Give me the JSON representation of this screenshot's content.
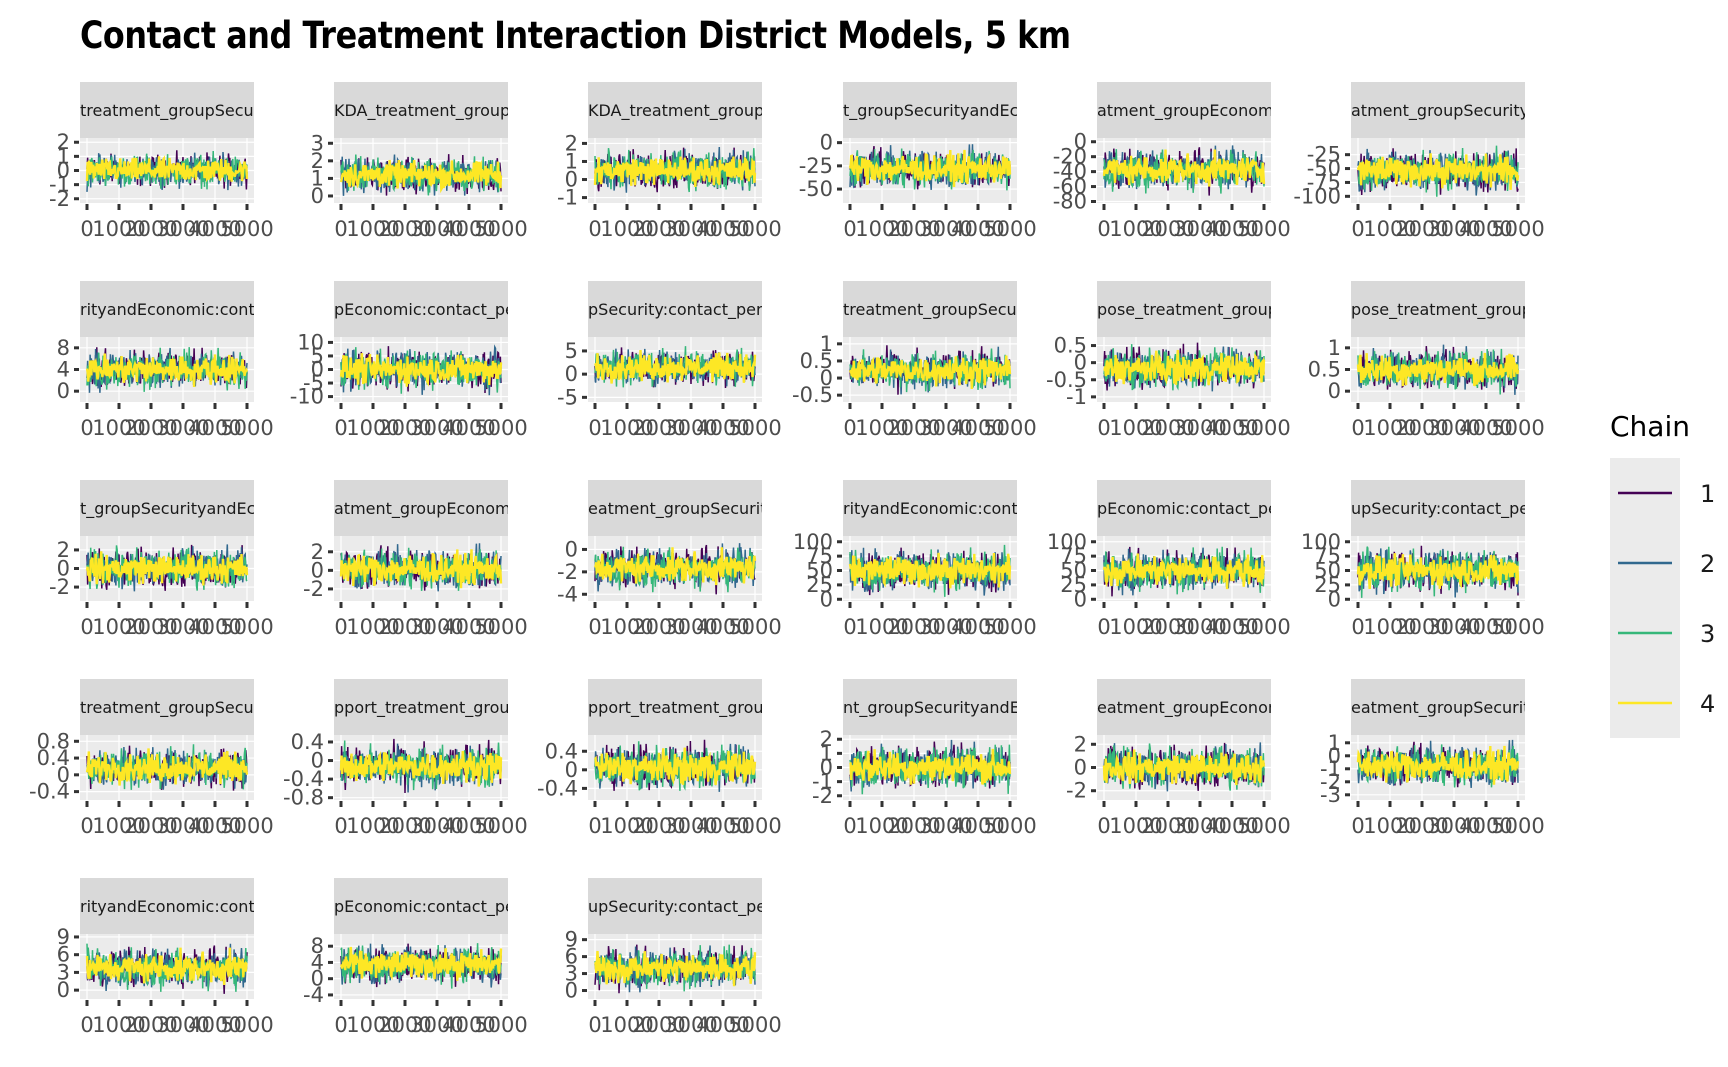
{
  "chart_data": {
    "type": "line",
    "title": "Contact and Treatment Interaction District Models, 5 km",
    "x_tick_labels": [
      "0",
      "1000",
      "2000",
      "3000",
      "4000",
      "5000"
    ],
    "xlim": [
      0,
      5000
    ],
    "grid": true,
    "legend": {
      "title": "Chain",
      "position": "right",
      "entries": [
        {
          "label": "1",
          "color": "#440154"
        },
        {
          "label": "2",
          "color": "#31688e"
        },
        {
          "label": "3",
          "color": "#35b779"
        },
        {
          "label": "4",
          "color": "#fde725"
        }
      ]
    },
    "panels": [
      {
        "strip": "treatment_groupSecurity",
        "yticks": [
          2,
          1,
          0,
          -1,
          -2
        ],
        "ylim": [
          -2.3,
          2.3
        ],
        "band": [
          -1.6,
          1.6
        ]
      },
      {
        "strip": "KDA_treatment_groupEc",
        "yticks": [
          3,
          2,
          1,
          0
        ],
        "ylim": [
          -0.4,
          3.3
        ],
        "band": [
          -0.2,
          2.6
        ]
      },
      {
        "strip": "KDA_treatment_groupSe",
        "yticks": [
          2,
          1,
          0,
          -1
        ],
        "ylim": [
          -1.3,
          2.3
        ],
        "band": [
          -1.0,
          2.0
        ]
      },
      {
        "strip": "t_groupSecurityandEcon",
        "yticks": [
          0,
          -25,
          -50
        ],
        "ylim": [
          -65,
          5
        ],
        "band": [
          -58,
          2
        ]
      },
      {
        "strip": "atment_groupEconomic:c",
        "yticks": [
          0,
          -20,
          -40,
          -60,
          -80
        ],
        "ylim": [
          -82,
          5
        ],
        "band": [
          -75,
          0
        ]
      },
      {
        "strip": "atment_groupSecurity:co",
        "yticks": [
          -25,
          -50,
          -75,
          -100
        ],
        "ylim": [
          -112,
          5
        ],
        "band": [
          -105,
          -3
        ]
      },
      {
        "strip": "rityandEconomic:contact",
        "yticks": [
          8,
          4,
          0
        ],
        "ylim": [
          -2,
          10
        ],
        "band": [
          -1,
          9
        ]
      },
      {
        "strip": "pEconomic:contact_persl",
        "yticks": [
          10,
          5,
          0,
          -5,
          -10
        ],
        "ylim": [
          -12,
          12
        ],
        "band": [
          -10,
          10
        ]
      },
      {
        "strip": "pSecurity:contact_persD",
        "yticks": [
          5,
          0,
          -5
        ],
        "ylim": [
          -6,
          8
        ],
        "band": [
          -4,
          7
        ]
      },
      {
        "strip": "treatment_groupSecurity",
        "yticks": [
          1.0,
          0.5,
          0.0,
          -0.5
        ],
        "ylim": [
          -0.7,
          1.2
        ],
        "band": [
          -0.55,
          1.0
        ]
      },
      {
        "strip": "pose_treatment_groupEc",
        "yticks": [
          0.5,
          0.0,
          -0.5,
          -1.0
        ],
        "ylim": [
          -1.15,
          0.75
        ],
        "band": [
          -1.0,
          0.65
        ]
      },
      {
        "strip": "pose_treatment_groupS",
        "yticks": [
          1.0,
          0.5,
          0.0
        ],
        "ylim": [
          -0.25,
          1.25
        ],
        "band": [
          -0.15,
          1.15
        ]
      },
      {
        "strip": "t_groupSecurityandEcon",
        "yticks": [
          2,
          0,
          -2
        ],
        "ylim": [
          -3.5,
          3.5
        ],
        "band": [
          -3.0,
          3.0
        ]
      },
      {
        "strip": "atment_groupEconomic:",
        "yticks": [
          2,
          0,
          -2
        ],
        "ylim": [
          -3.3,
          3.7
        ],
        "band": [
          -3.0,
          3.3
        ]
      },
      {
        "strip": "eatment_groupSecurity:c",
        "yticks": [
          0,
          -2,
          -4
        ],
        "ylim": [
          -4.6,
          1.2
        ],
        "band": [
          -4.2,
          0.9
        ]
      },
      {
        "strip": "rityandEconomic:contac",
        "yticks": [
          100,
          75,
          50,
          25,
          0
        ],
        "ylim": [
          -3,
          110
        ],
        "band": [
          0,
          100
        ]
      },
      {
        "strip": "pEconomic:contact_pers",
        "yticks": [
          100,
          75,
          50,
          25,
          0
        ],
        "ylim": [
          -3,
          110
        ],
        "band": [
          0,
          100
        ]
      },
      {
        "strip": "upSecurity:contact_pers",
        "yticks": [
          100,
          75,
          50,
          25,
          0
        ],
        "ylim": [
          -3,
          110
        ],
        "band": [
          0,
          100
        ]
      },
      {
        "strip": "treatment_groupSecurit",
        "yticks": [
          0.8,
          0.4,
          0.0,
          -0.4
        ],
        "ylim": [
          -0.6,
          0.95
        ],
        "band": [
          -0.5,
          0.85
        ]
      },
      {
        "strip": "pport_treatment_groupE",
        "yticks": [
          0.4,
          0.0,
          -0.4,
          -0.8
        ],
        "ylim": [
          -0.85,
          0.55
        ],
        "band": [
          -0.75,
          0.5
        ]
      },
      {
        "strip": "pport_treatment_groupS",
        "yticks": [
          0.4,
          0.0,
          -0.4
        ],
        "ylim": [
          -0.65,
          0.75
        ],
        "band": [
          -0.6,
          0.7
        ]
      },
      {
        "strip": "nt_groupSecurityandEcon",
        "yticks": [
          2,
          1,
          0,
          -1,
          -2
        ],
        "ylim": [
          -2.3,
          2.3
        ],
        "band": [
          -2.1,
          2.2
        ]
      },
      {
        "strip": "eatment_groupEconomic:",
        "yticks": [
          2,
          0,
          -2
        ],
        "ylim": [
          -2.8,
          2.8
        ],
        "band": [
          -2.5,
          2.5
        ]
      },
      {
        "strip": "eatment_groupSecurity:",
        "yticks": [
          1,
          0,
          -1,
          -2,
          -3
        ],
        "ylim": [
          -3.4,
          1.6
        ],
        "band": [
          -3.0,
          1.5
        ]
      },
      {
        "strip": "rityandEconomic:contac",
        "yticks": [
          9,
          6,
          3,
          0
        ],
        "ylim": [
          -1.5,
          9.5
        ],
        "band": [
          -1,
          8.5
        ]
      },
      {
        "strip": "pEconomic:contact_pers",
        "yticks": [
          8,
          4,
          0,
          -4
        ],
        "ylim": [
          -5,
          11
        ],
        "band": [
          -3,
          10
        ]
      },
      {
        "strip": "upSecurity:contact_pers",
        "yticks": [
          9,
          6,
          3,
          0
        ],
        "ylim": [
          -1.5,
          10
        ],
        "band": [
          -1,
          9
        ]
      }
    ]
  }
}
